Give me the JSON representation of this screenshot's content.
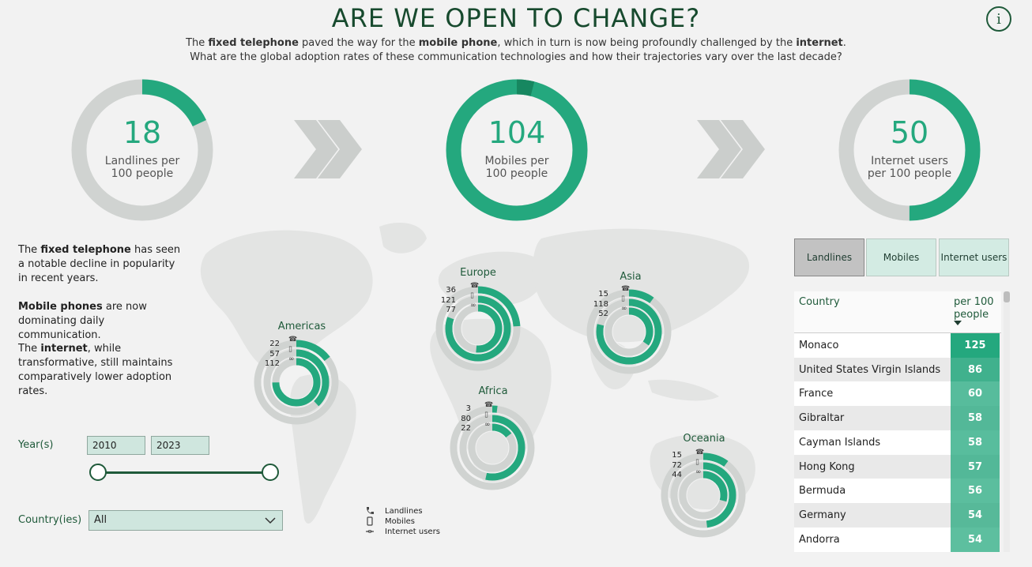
{
  "header": {
    "title": "ARE WE OPEN TO CHANGE?",
    "line1": {
      "t1": "The ",
      "b1": "fixed telephone",
      "t2": " paved the way for the ",
      "b2": "mobile phone",
      "t3": ", which in turn is now being profoundly challenged by the ",
      "b3": "internet",
      "t4": "."
    },
    "line2": "What are the global adoption rates of these communication technologies and how their trajectories vary over the last decade?",
    "info_label": "i"
  },
  "kpis": [
    {
      "value": "18",
      "label_line1": "Landlines per",
      "label_line2": "100 people",
      "fraction": 0.18
    },
    {
      "value": "104",
      "label_line1": "Mobiles per",
      "label_line2": "100 people",
      "fraction": 1.04
    },
    {
      "value": "50",
      "label_line1": "Internet users",
      "label_line2": "per 100 people",
      "fraction": 0.5
    }
  ],
  "description": {
    "p1": {
      "t1": "The ",
      "b": "fixed telephone",
      "t2": " has seen a notable decline in popularity in recent years."
    },
    "p2": {
      "b": "Mobile phones",
      "t2": " are now dominating daily communication."
    },
    "p3": {
      "t1": "The ",
      "b": "internet",
      "t2": ", while transformative, still maintains comparatively lower adoption rates."
    }
  },
  "filters": {
    "year_label": "Year(s)",
    "year_from": "2010",
    "year_to": "2023",
    "country_label": "Country(ies)",
    "country_value": "All"
  },
  "regions": [
    {
      "name": "Americas",
      "landlines": 22,
      "mobiles": 57,
      "internet": 112
    },
    {
      "name": "Europe",
      "landlines": 36,
      "mobiles": 121,
      "internet": 77
    },
    {
      "name": "Asia",
      "landlines": 15,
      "mobiles": 118,
      "internet": 52
    },
    {
      "name": "Africa",
      "landlines": 3,
      "mobiles": 80,
      "internet": 22
    },
    {
      "name": "Oceania",
      "landlines": 15,
      "mobiles": 72,
      "internet": 44
    }
  ],
  "legend": {
    "landlines": "Landlines",
    "mobiles": "Mobiles",
    "internet": "Internet users"
  },
  "tabs": [
    {
      "label": "Landlines",
      "active": true
    },
    {
      "label": "Mobiles",
      "active": false
    },
    {
      "label": "Internet users",
      "active": false
    }
  ],
  "table": {
    "col_country": "Country",
    "col_value": "per 100 people",
    "rows": [
      {
        "country": "Monaco",
        "value": 125
      },
      {
        "country": "United States Virgin Islands",
        "value": 86
      },
      {
        "country": "France",
        "value": 60
      },
      {
        "country": "Gibraltar",
        "value": 58
      },
      {
        "country": "Cayman Islands",
        "value": 58
      },
      {
        "country": "Hong Kong",
        "value": 57
      },
      {
        "country": "Bermuda",
        "value": 56
      },
      {
        "country": "Germany",
        "value": 54
      },
      {
        "country": "Andorra",
        "value": 54
      }
    ]
  },
  "colors": {
    "accent": "#24a87e",
    "accent_dark": "#178760",
    "track": "#d0d3d1",
    "title": "#174a2e"
  }
}
